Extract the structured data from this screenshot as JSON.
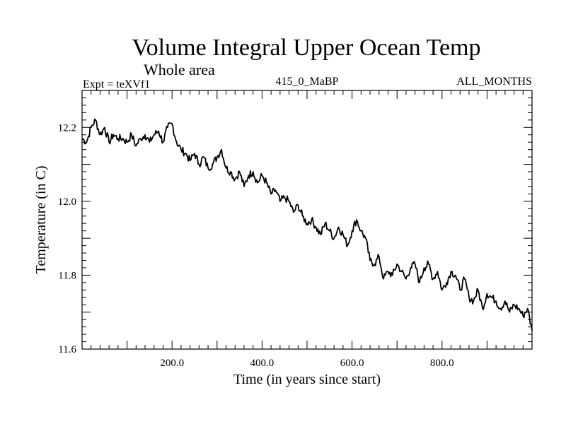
{
  "chart_data": {
    "type": "line",
    "title": "Volume Integral Upper Ocean Temp",
    "subtitle": "Whole area",
    "experiment_label": "Expt = teXVf1",
    "run_label": "415_0_MaBP",
    "months_label": "ALL_MONTHS",
    "xlabel": "Time (in years since start)",
    "ylabel": "Temperature (in C)",
    "xlim": [
      0,
      1000
    ],
    "ylim": [
      11.6,
      12.3
    ],
    "xticks": [
      200,
      400,
      600,
      800
    ],
    "xtick_labels": [
      "200.0",
      "400.0",
      "600.0",
      "800.0"
    ],
    "yticks": [
      11.6,
      11.8,
      12.0,
      12.2
    ],
    "ytick_labels": [
      "11.6",
      "11.8",
      "12.0",
      "12.2"
    ],
    "grid": false,
    "series": [
      {
        "name": "temperature",
        "color": "#000000",
        "x": [
          0,
          10,
          20,
          30,
          40,
          50,
          60,
          70,
          80,
          90,
          100,
          110,
          120,
          130,
          140,
          150,
          160,
          170,
          180,
          190,
          200,
          210,
          220,
          230,
          240,
          250,
          260,
          270,
          280,
          290,
          300,
          310,
          320,
          330,
          340,
          350,
          360,
          370,
          380,
          390,
          400,
          410,
          420,
          430,
          440,
          450,
          460,
          470,
          480,
          490,
          500,
          510,
          520,
          530,
          540,
          550,
          560,
          570,
          580,
          590,
          600,
          610,
          620,
          630,
          640,
          650,
          660,
          670,
          680,
          690,
          700,
          710,
          720,
          730,
          740,
          750,
          760,
          770,
          780,
          790,
          800,
          810,
          820,
          830,
          840,
          850,
          860,
          870,
          880,
          890,
          900,
          910,
          920,
          930,
          940,
          950,
          960,
          970,
          980,
          990,
          1000
        ],
        "values": [
          12.17,
          12.16,
          12.2,
          12.22,
          12.18,
          12.2,
          12.16,
          12.18,
          12.17,
          12.17,
          12.16,
          12.18,
          12.15,
          12.17,
          12.18,
          12.16,
          12.18,
          12.19,
          12.16,
          12.2,
          12.21,
          12.16,
          12.14,
          12.13,
          12.11,
          12.13,
          12.1,
          12.12,
          12.09,
          12.1,
          12.12,
          12.14,
          12.09,
          12.08,
          12.06,
          12.08,
          12.04,
          12.07,
          12.08,
          12.05,
          12.07,
          12.05,
          12.02,
          12.03,
          12.0,
          12.01,
          12.0,
          11.97,
          11.99,
          11.96,
          11.94,
          11.95,
          11.93,
          11.91,
          11.94,
          11.92,
          11.9,
          11.93,
          11.91,
          11.88,
          11.92,
          11.95,
          11.92,
          11.9,
          11.84,
          11.83,
          11.85,
          11.79,
          11.81,
          11.8,
          11.83,
          11.81,
          11.79,
          11.82,
          11.83,
          11.78,
          11.82,
          11.83,
          11.79,
          11.81,
          11.76,
          11.78,
          11.81,
          11.8,
          11.76,
          11.79,
          11.74,
          11.73,
          11.76,
          11.71,
          11.75,
          11.74,
          11.73,
          11.71,
          11.73,
          11.7,
          11.72,
          11.71,
          11.69,
          11.71,
          11.65
        ]
      }
    ]
  }
}
